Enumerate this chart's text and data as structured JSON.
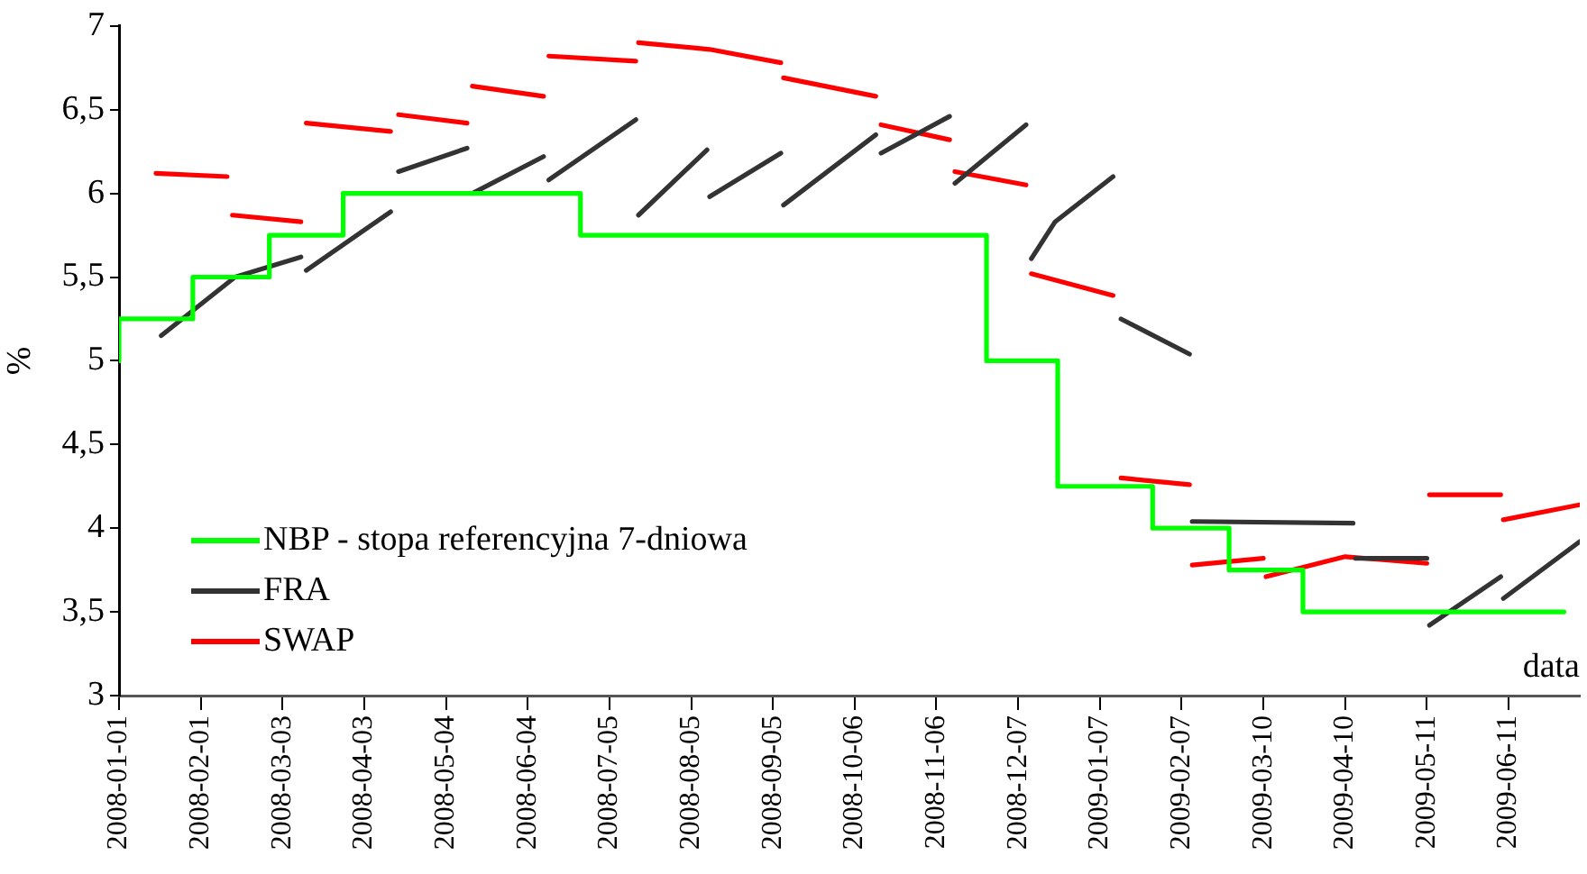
{
  "chart_data": {
    "type": "line",
    "ylabel": "%",
    "xlabel": "data",
    "xlim": [
      "2008-01-01",
      "2009-07-08"
    ],
    "xticks": [
      "2008-01-01",
      "2008-02-01",
      "2008-03-03",
      "2008-04-03",
      "2008-05-04",
      "2008-06-04",
      "2008-07-05",
      "2008-08-05",
      "2008-09-05",
      "2008-10-06",
      "2008-11-06",
      "2008-12-07",
      "2009-01-07",
      "2009-02-07",
      "2009-03-10",
      "2009-04-10",
      "2009-05-11",
      "2009-06-11"
    ],
    "ylim": [
      3,
      7
    ],
    "yticks": [
      3,
      {
        "value": 3.5,
        "label": "3,5"
      },
      4,
      {
        "value": 4.5,
        "label": "4,5"
      },
      5,
      {
        "value": 5.5,
        "label": "5,5"
      },
      6,
      {
        "value": 6.5,
        "label": "6,5"
      },
      7
    ],
    "grid": false,
    "legend": "bottom left",
    "marker": "none",
    "line_style": "solid",
    "series": [
      {
        "name": "NBP - stopa referencyjna 7-dniowa",
        "type": "step",
        "color": "#00ff00",
        "x": [
          "2008-01-01",
          "2008-01-29",
          "2008-02-27",
          "2008-03-26",
          "2008-06-24",
          "2008-11-25",
          "2008-12-22",
          "2009-01-27",
          "2009-02-25",
          "2009-03-25",
          "2009-06-23",
          "2009-07-02"
        ],
        "values": [
          5,
          5.25,
          5.5,
          5.75,
          6,
          5.75,
          5,
          4.25,
          4,
          3.75,
          3.5,
          3.5
        ]
      },
      {
        "name": "FRA",
        "type": "line",
        "color": "#333333",
        "x": [
          "2008-01-17",
          "2008-02-14",
          "2008-03-10",
          null,
          "2008-03-12",
          "2008-04-13",
          null,
          "2008-04-16",
          "2008-05-12",
          null,
          "2008-05-14",
          "2008-06-10",
          null,
          "2008-06-12",
          "2008-07-15",
          null,
          "2008-07-16",
          "2008-08-11",
          null,
          "2008-08-12",
          "2008-09-08",
          null,
          "2008-09-09",
          "2008-10-14",
          null,
          "2008-10-16",
          "2008-11-11",
          null,
          "2008-11-13",
          "2008-12-10",
          null,
          "2008-12-12",
          "2008-12-21",
          "2009-01-12",
          null,
          "2009-01-15",
          "2009-02-10",
          null,
          "2009-02-11",
          "2009-04-13",
          null,
          "2009-04-14",
          "2009-05-11",
          null,
          "2009-05-12",
          "2009-06-08",
          null,
          "2009-06-09",
          "2009-07-08"
        ],
        "values": [
          5.15,
          5.5,
          5.62,
          null,
          5.54,
          5.89,
          null,
          6.13,
          6.27,
          null,
          6.0,
          6.22,
          null,
          6.08,
          6.44,
          null,
          5.87,
          6.26,
          null,
          5.98,
          6.24,
          null,
          5.93,
          6.35,
          null,
          6.24,
          6.46,
          null,
          6.06,
          6.41,
          null,
          5.61,
          5.83,
          6.1,
          null,
          5.25,
          5.04,
          null,
          4.04,
          4.03,
          null,
          3.82,
          3.82,
          null,
          3.42,
          3.71,
          null,
          3.58,
          3.92
        ]
      },
      {
        "name": "SWAP",
        "type": "line",
        "color": "#ff0000",
        "x": [
          "2008-01-15",
          "2008-02-11",
          null,
          "2008-02-13",
          "2008-03-10",
          null,
          "2008-03-12",
          "2008-04-13",
          null,
          "2008-04-16",
          "2008-05-12",
          null,
          "2008-05-14",
          "2008-06-10",
          null,
          "2008-06-12",
          "2008-07-15",
          null,
          "2008-07-16",
          "2008-08-12",
          "2008-09-08",
          null,
          "2008-09-09",
          "2008-10-14",
          null,
          "2008-10-16",
          "2008-11-11",
          null,
          "2008-11-13",
          "2008-12-10",
          null,
          "2008-12-12",
          "2009-01-12",
          null,
          "2009-01-15",
          "2009-02-10",
          null,
          "2009-02-11",
          "2009-03-10",
          null,
          "2009-03-11",
          "2009-04-10",
          "2009-05-11",
          null,
          "2009-05-12",
          "2009-06-08",
          null,
          "2009-06-09",
          "2009-07-08"
        ],
        "values": [
          6.12,
          6.1,
          null,
          5.87,
          5.83,
          null,
          6.42,
          6.37,
          null,
          6.47,
          6.42,
          null,
          6.64,
          6.58,
          null,
          6.82,
          6.79,
          null,
          6.9,
          6.86,
          6.78,
          null,
          6.69,
          6.58,
          null,
          6.41,
          6.32,
          null,
          6.13,
          6.05,
          null,
          5.52,
          5.39,
          null,
          4.3,
          4.26,
          null,
          3.78,
          3.82,
          null,
          3.71,
          3.83,
          3.79,
          null,
          4.2,
          4.2,
          null,
          4.05,
          4.14
        ]
      }
    ]
  }
}
